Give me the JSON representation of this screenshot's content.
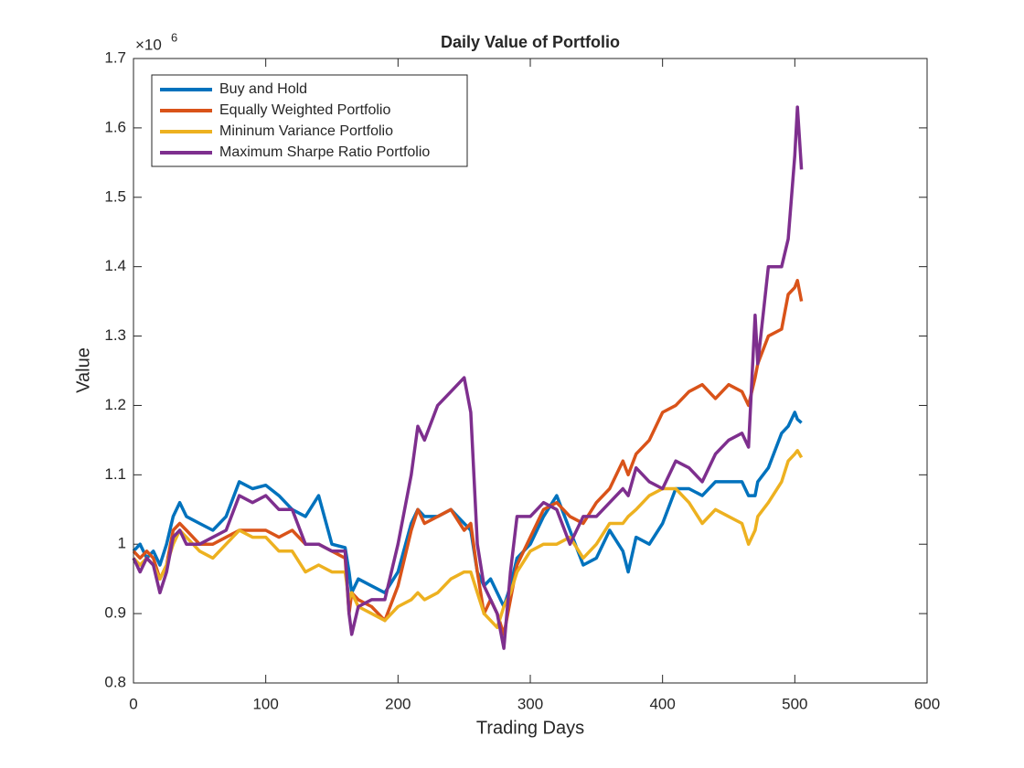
{
  "chart_data": {
    "type": "line",
    "title": "Daily Value of Portfolio",
    "x_label": "Trading Days",
    "y_label": "Value",
    "y_multiplier_base": "×10",
    "y_multiplier_exponent": "6",
    "xlim": [
      0,
      600
    ],
    "xticks": [
      0,
      100,
      200,
      300,
      400,
      500,
      600
    ],
    "ylim": [
      0.8,
      1.7
    ],
    "yticks": [
      0.8,
      0.9,
      1,
      1.1,
      1.2,
      1.3,
      1.4,
      1.5,
      1.6,
      1.7
    ],
    "grid": false,
    "legend": "upper left",
    "x": [
      0,
      5,
      10,
      15,
      20,
      25,
      30,
      35,
      40,
      50,
      60,
      70,
      80,
      90,
      100,
      110,
      120,
      130,
      140,
      150,
      160,
      163,
      165,
      170,
      180,
      190,
      200,
      210,
      215,
      220,
      230,
      240,
      250,
      255,
      260,
      265,
      270,
      275,
      280,
      285,
      290,
      300,
      310,
      320,
      330,
      340,
      350,
      360,
      370,
      374,
      380,
      390,
      400,
      410,
      420,
      430,
      440,
      450,
      460,
      465,
      470,
      472,
      480,
      490,
      495,
      500,
      502,
      505
    ],
    "series": [
      {
        "name": "Buy and Hold",
        "color": "#0072BD",
        "values": [
          0.99,
          1.0,
          0.98,
          0.99,
          0.97,
          1.0,
          1.04,
          1.06,
          1.04,
          1.03,
          1.02,
          1.04,
          1.09,
          1.08,
          1.085,
          1.07,
          1.05,
          1.04,
          1.07,
          1.0,
          0.995,
          0.96,
          0.93,
          0.95,
          0.94,
          0.93,
          0.96,
          1.03,
          1.05,
          1.04,
          1.04,
          1.05,
          1.03,
          1.02,
          0.96,
          0.94,
          0.95,
          0.93,
          0.91,
          0.94,
          0.98,
          1.0,
          1.04,
          1.07,
          1.02,
          0.97,
          0.98,
          1.02,
          0.99,
          0.96,
          1.01,
          1.0,
          1.03,
          1.08,
          1.08,
          1.07,
          1.09,
          1.09,
          1.09,
          1.07,
          1.07,
          1.09,
          1.11,
          1.16,
          1.17,
          1.19,
          1.18,
          1.175
        ]
      },
      {
        "name": "Equally Weighted Portfolio",
        "color": "#D95319",
        "values": [
          0.99,
          0.98,
          0.99,
          0.98,
          0.95,
          0.97,
          1.02,
          1.03,
          1.02,
          1.0,
          1.0,
          1.01,
          1.02,
          1.02,
          1.02,
          1.01,
          1.02,
          1.0,
          1.0,
          0.99,
          0.98,
          0.9,
          0.93,
          0.92,
          0.91,
          0.89,
          0.94,
          1.02,
          1.05,
          1.03,
          1.04,
          1.05,
          1.02,
          1.03,
          0.96,
          0.9,
          0.92,
          0.9,
          0.87,
          0.92,
          0.97,
          1.01,
          1.05,
          1.06,
          1.04,
          1.03,
          1.06,
          1.08,
          1.12,
          1.1,
          1.13,
          1.15,
          1.19,
          1.2,
          1.22,
          1.23,
          1.21,
          1.23,
          1.22,
          1.2,
          1.24,
          1.26,
          1.3,
          1.31,
          1.36,
          1.37,
          1.38,
          1.35
        ]
      },
      {
        "name": "Mininum Variance Portfolio",
        "color": "#EDB120",
        "values": [
          0.98,
          0.97,
          0.98,
          0.97,
          0.95,
          0.97,
          1.0,
          1.02,
          1.01,
          0.99,
          0.98,
          1.0,
          1.02,
          1.01,
          1.01,
          0.99,
          0.99,
          0.96,
          0.97,
          0.96,
          0.96,
          0.92,
          0.93,
          0.91,
          0.9,
          0.89,
          0.91,
          0.92,
          0.93,
          0.92,
          0.93,
          0.95,
          0.96,
          0.96,
          0.93,
          0.9,
          0.89,
          0.88,
          0.91,
          0.93,
          0.96,
          0.99,
          1.0,
          1.0,
          1.01,
          0.98,
          1.0,
          1.03,
          1.03,
          1.04,
          1.05,
          1.07,
          1.08,
          1.08,
          1.06,
          1.03,
          1.05,
          1.04,
          1.03,
          1.0,
          1.02,
          1.04,
          1.06,
          1.09,
          1.12,
          1.13,
          1.135,
          1.125
        ]
      },
      {
        "name": "Maximum Sharpe Ratio Portfolio",
        "color": "#7E2F8E",
        "values": [
          0.98,
          0.96,
          0.98,
          0.97,
          0.93,
          0.96,
          1.01,
          1.02,
          1.0,
          1.0,
          1.01,
          1.02,
          1.07,
          1.06,
          1.07,
          1.05,
          1.05,
          1.0,
          1.0,
          0.99,
          0.99,
          0.9,
          0.87,
          0.91,
          0.92,
          0.92,
          1.0,
          1.1,
          1.17,
          1.15,
          1.2,
          1.22,
          1.24,
          1.19,
          1.0,
          0.94,
          0.92,
          0.9,
          0.85,
          0.96,
          1.04,
          1.04,
          1.06,
          1.05,
          1.0,
          1.04,
          1.04,
          1.06,
          1.08,
          1.07,
          1.11,
          1.09,
          1.08,
          1.12,
          1.11,
          1.09,
          1.13,
          1.15,
          1.16,
          1.14,
          1.33,
          1.26,
          1.4,
          1.4,
          1.44,
          1.56,
          1.63,
          1.54
        ]
      }
    ]
  }
}
